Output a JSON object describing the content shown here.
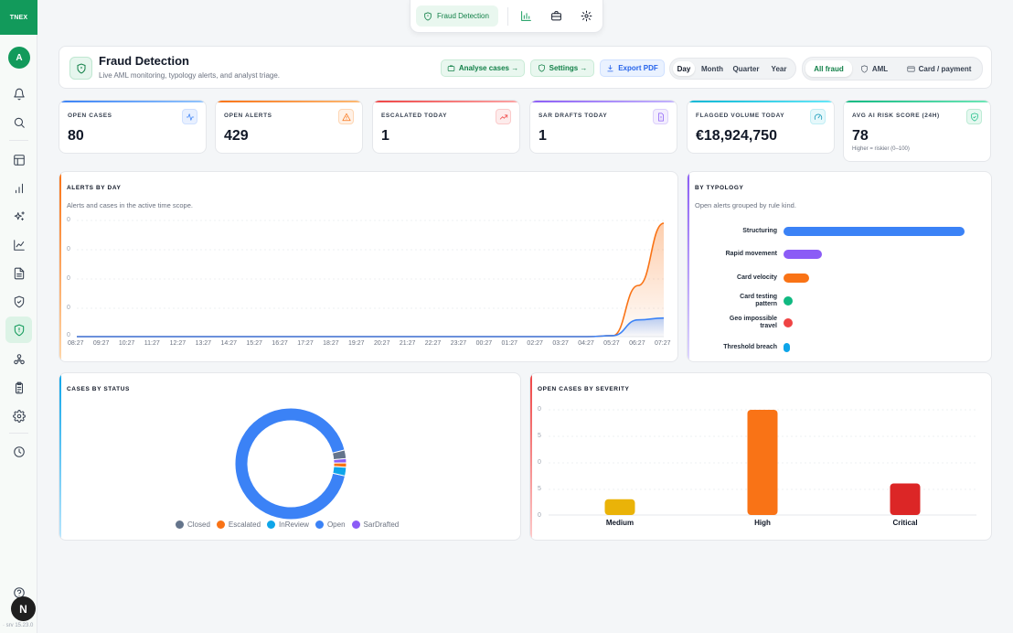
{
  "sidebar": {
    "logo": "TNEX",
    "avatar_initial": "A",
    "icons": [
      "bell-icon",
      "search-icon",
      "table-icon",
      "bar-chart-icon",
      "sparkles-icon",
      "line-chart-icon",
      "document-icon",
      "shield-check-icon",
      "shield-icon",
      "network-icon",
      "clipboard-icon",
      "gear-icon",
      "clock-icon"
    ],
    "active": "shield-icon",
    "help_icon": "help-circle-icon",
    "badge": "N",
    "version": "· srv 15.23.0"
  },
  "topbar": {
    "active_label": "Fraud Detection",
    "icons": [
      "bar-chart-icon",
      "briefcase-icon",
      "gear-icon"
    ]
  },
  "header": {
    "title": "Fraud Detection",
    "subtitle": "Live AML monitoring, typology alerts, and analyst triage.",
    "analyse_label": "Analyse cases →",
    "settings_label": "Settings →",
    "export_label": "Export PDF",
    "time_scopes": [
      "Day",
      "Month",
      "Quarter",
      "Year"
    ],
    "time_scope_active": "Day",
    "filters": [
      "All fraud",
      "AML",
      "Card / payment"
    ],
    "filter_active": "All fraud"
  },
  "kpis": [
    {
      "label": "OPEN CASES",
      "value": "80",
      "icon": "activity-icon",
      "color": "#3b82f6"
    },
    {
      "label": "OPEN ALERTS",
      "value": "429",
      "icon": "warning-icon",
      "color": "#f97316"
    },
    {
      "label": "ESCALATED TODAY",
      "value": "1",
      "icon": "trending-up-icon",
      "color": "#ef4444"
    },
    {
      "label": "SAR DRAFTS TODAY",
      "value": "1",
      "icon": "file-alert-icon",
      "color": "#8b5cf6"
    },
    {
      "label": "FLAGGED VOLUME TODAY",
      "value": "€18,924,750",
      "icon": "gauge-icon",
      "color": "#06b6d4"
    },
    {
      "label": "AVG AI RISK SCORE (24H)",
      "value": "78",
      "note": "Higher = riskier (0–100)",
      "icon": "shield-check-icon",
      "color": "#10b981"
    }
  ],
  "alerts_panel": {
    "title": "ALERTS BY DAY",
    "subtitle": "Alerts and cases in the active time scope.",
    "y_ticks": [
      "0",
      "0",
      "0",
      "0",
      "0"
    ],
    "accent": "#f97316"
  },
  "typology_panel": {
    "title": "BY TYPOLOGY",
    "subtitle": "Open alerts grouped by rule kind.",
    "accent": "#8b5cf6"
  },
  "status_panel": {
    "title": "CASES BY STATUS",
    "accent": "#0ea5e9"
  },
  "severity_panel": {
    "title": "OPEN CASES BY SEVERITY",
    "y_ticks": [
      "0",
      "5",
      "0",
      "5",
      "0"
    ],
    "accent": "#ef4444"
  },
  "chart_data": [
    {
      "type": "area",
      "title": "ALERTS BY DAY",
      "x": [
        "08:27",
        "09:27",
        "10:27",
        "11:27",
        "12:27",
        "13:27",
        "14:27",
        "15:27",
        "16:27",
        "17:27",
        "18:27",
        "19:27",
        "20:27",
        "21:27",
        "22:27",
        "23:27",
        "00:27",
        "01:27",
        "02:27",
        "03:27",
        "04:27",
        "05:27",
        "06:27",
        "07:27"
      ],
      "series": [
        {
          "color": "#f97316",
          "values": [
            0,
            0,
            0,
            0,
            0,
            0,
            0,
            0,
            0,
            0,
            0,
            0,
            0,
            0,
            0,
            0,
            0,
            0,
            0,
            0,
            0,
            1,
            55,
            122
          ]
        },
        {
          "color": "#3b82f6",
          "values": [
            0,
            0,
            0,
            0,
            0,
            0,
            0,
            0,
            0,
            0,
            0,
            0,
            0,
            0,
            0,
            0,
            0,
            0,
            0,
            0,
            0,
            1,
            18,
            20
          ]
        }
      ],
      "ylim": [
        0,
        125
      ]
    },
    {
      "type": "bar",
      "title": "BY TYPOLOGY",
      "orientation": "horizontal",
      "categories": [
        "Structuring",
        "Rapid movement",
        "Card velocity",
        "Card testing pattern",
        "Geo impossible travel",
        "Threshold breach"
      ],
      "values": [
        190,
        40,
        27,
        10,
        10,
        5
      ],
      "colors": [
        "#3b82f6",
        "#8b5cf6",
        "#f97316",
        "#10b981",
        "#ef4444",
        "#0ea5e9"
      ]
    },
    {
      "type": "pie",
      "title": "CASES BY STATUS",
      "categories": [
        "Open",
        "Closed",
        "SarDrafted",
        "Escalated",
        "InReview"
      ],
      "legend": [
        "Closed",
        "Escalated",
        "InReview",
        "Open",
        "SarDrafted"
      ],
      "values": [
        74,
        2,
        1,
        1,
        2
      ],
      "colors": [
        "#3b82f6",
        "#64748b",
        "#8b5cf6",
        "#f97316",
        "#0ea5e9"
      ],
      "legend_colors": [
        "#64748b",
        "#f97316",
        "#0ea5e9",
        "#3b82f6",
        "#8b5cf6"
      ]
    },
    {
      "type": "bar",
      "title": "OPEN CASES BY SEVERITY",
      "categories": [
        "Medium",
        "High",
        "Critical"
      ],
      "values": [
        3,
        20,
        6
      ],
      "colors": [
        "#eab308",
        "#f97316",
        "#dc2626"
      ],
      "ylim": [
        0,
        20
      ]
    }
  ]
}
